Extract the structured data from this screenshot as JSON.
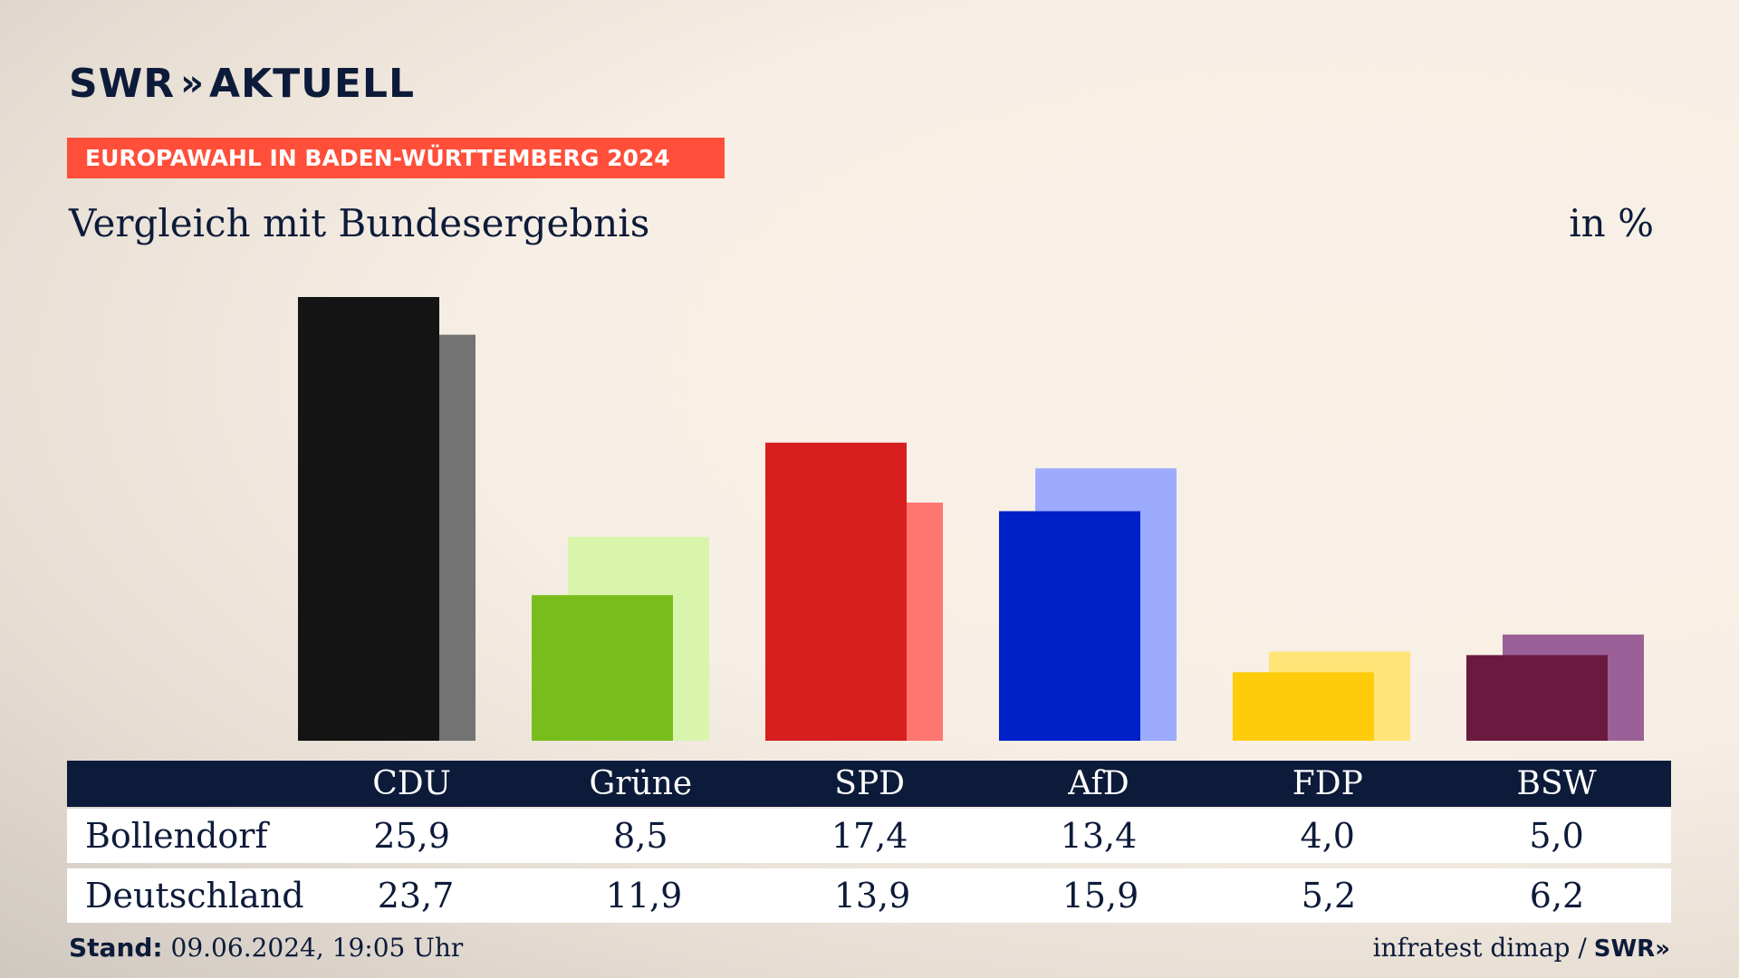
{
  "brand": {
    "swr": "SWR",
    "chevrons": "»",
    "aktuell": "AKTUELL"
  },
  "banner": "EUROPAWAHL IN BADEN-WÜRTTEMBERG 2024",
  "subtitle": "Vergleich mit Bundesergebnis",
  "unit": "in %",
  "table": {
    "parties": [
      "CDU",
      "Grüne",
      "SPD",
      "AfD",
      "FDP",
      "BSW"
    ],
    "rows": [
      {
        "label": "Bollendorf",
        "values": [
          "25,9",
          "8,5",
          "17,4",
          "13,4",
          "4,0",
          "5,0"
        ]
      },
      {
        "label": "Deutschland",
        "values": [
          "23,7",
          "11,9",
          "13,9",
          "15,9",
          "5,2",
          "6,2"
        ]
      }
    ]
  },
  "footer": {
    "stand_label": "Stand:",
    "stand_value": "09.06.2024, 19:05 Uhr",
    "source": "infratest dimap /",
    "source_brand": "SWR»"
  },
  "chart_data": {
    "type": "bar",
    "categories": [
      "CDU",
      "Grüne",
      "SPD",
      "AfD",
      "FDP",
      "BSW"
    ],
    "series": [
      {
        "name": "Bollendorf",
        "values": [
          25.9,
          8.5,
          17.4,
          13.4,
          4.0,
          5.0
        ]
      },
      {
        "name": "Deutschland",
        "values": [
          23.7,
          11.9,
          13.9,
          15.9,
          5.2,
          6.2
        ]
      }
    ],
    "ylim": [
      0,
      25.9
    ],
    "colors": {
      "Bollendorf": [
        "#141414",
        "#79bd1c",
        "#d81f1f",
        "#0020c8",
        "#ffcc0b",
        "#6b1a3f"
      ],
      "Deutschland": [
        "#737373",
        "#d9f5ab",
        "#ff7570",
        "#9dabff",
        "#ffe478",
        "#9c6098"
      ]
    }
  }
}
